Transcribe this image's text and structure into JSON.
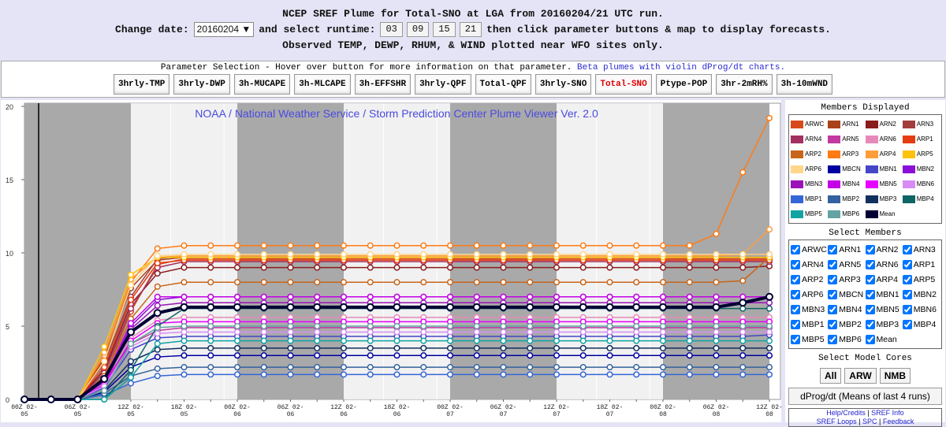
{
  "header": {
    "line1": "NCEP SREF Plume for Total-SNO at LGA from 20160204/21 UTC run.",
    "change_date": "Change date:",
    "date": "20160204",
    "select_runtime": "and select runtime:",
    "runtimes": [
      "03",
      "09",
      "15",
      "21"
    ],
    "line2_tail": "then click parameter buttons & map to display forecasts.",
    "line3": "Observed TEMP, DEWP, RHUM, & WIND plotted near WFO sites only."
  },
  "parameters": {
    "label": "Parameter Selection - Hover over button for more information on that parameter.",
    "beta_link": "Beta plumes with violin dProg/dt charts.",
    "buttons": [
      "3hrly-TMP",
      "3hrly-DWP",
      "3h-MUCAPE",
      "3h-MLCAPE",
      "3h-EFFSHR",
      "3hrly-QPF",
      "Total-QPF",
      "3hrly-SNO",
      "Total-SNO",
      "Ptype-POP",
      "3hr-2mRH%",
      "3h-10mWND"
    ],
    "active": 8
  },
  "chart_data": {
    "type": "line",
    "title": "NOAA / National Weather Service / Storm Prediction Center Plume Viewer Ver. 2.0",
    "categories": [
      "00Z 02-05",
      null,
      "06Z 02-05",
      null,
      "12Z 02-05",
      null,
      "18Z 02-05",
      null,
      "00Z 02-06",
      null,
      "06Z 02-06",
      null,
      "12Z 02-06",
      null,
      "18Z 02-06",
      null,
      "00Z 02-07",
      null,
      "06Z 02-07",
      null,
      "12Z 02-07",
      null,
      "18Z 02-07",
      null,
      "00Z 02-08",
      null,
      "06Z 02-08",
      null,
      "12Z 02-08"
    ],
    "ylim": [
      0,
      20
    ],
    "yticks": [
      0,
      5,
      10,
      15,
      20
    ],
    "series": [
      {
        "name": "ARWC",
        "color": "#d84a1b",
        "values": [
          0,
          0,
          0,
          1.5,
          6,
          9.2,
          9.6,
          9.6,
          9.6,
          9.6,
          9.6,
          9.6,
          9.6,
          9.6,
          9.6,
          9.6,
          9.6,
          9.6,
          9.6,
          9.6,
          9.6,
          9.6,
          9.6,
          9.6,
          9.6,
          9.6,
          9.6,
          9.6,
          9.6
        ]
      },
      {
        "name": "ARN1",
        "color": "#a8421a",
        "values": [
          0,
          0,
          0,
          2.8,
          7.6,
          9.5,
          9.7,
          9.7,
          9.7,
          9.7,
          9.7,
          9.7,
          9.7,
          9.7,
          9.7,
          9.7,
          9.7,
          9.7,
          9.7,
          9.7,
          9.7,
          9.7,
          9.7,
          9.7,
          9.7,
          9.7,
          9.7,
          9.7,
          9.7
        ]
      },
      {
        "name": "ARN2",
        "color": "#8b1c1c",
        "values": [
          0,
          0,
          0,
          2,
          6.5,
          8.6,
          9,
          9,
          9,
          9,
          9,
          9,
          9,
          9,
          9,
          9,
          9,
          9,
          9,
          9,
          9,
          9,
          9,
          9,
          9,
          9,
          9,
          9,
          9.1
        ]
      },
      {
        "name": "ARN3",
        "color": "#a33d3d",
        "values": [
          0,
          0,
          0,
          2.5,
          7,
          9.6,
          9.8,
          9.8,
          9.8,
          9.8,
          9.8,
          9.8,
          9.8,
          9.8,
          9.8,
          9.8,
          9.8,
          9.8,
          9.8,
          9.8,
          9.8,
          9.8,
          9.8,
          9.8,
          9.8,
          9.8,
          9.8,
          9.9,
          9.9
        ]
      },
      {
        "name": "ARN4",
        "color": "#a33060",
        "values": [
          0,
          0,
          0,
          1.8,
          6.2,
          9,
          9.4,
          9.4,
          9.4,
          9.4,
          9.4,
          9.4,
          9.4,
          9.4,
          9.4,
          9.4,
          9.4,
          9.4,
          9.4,
          9.4,
          9.4,
          9.4,
          9.4,
          9.4,
          9.4,
          9.4,
          9.4,
          9.4,
          9.4
        ]
      },
      {
        "name": "ARN5",
        "color": "#c23aa0",
        "values": [
          0,
          0,
          0,
          1.2,
          3.8,
          4.7,
          4.9,
          4.9,
          4.9,
          4.9,
          4.9,
          4.9,
          4.9,
          4.9,
          4.9,
          4.9,
          4.9,
          4.9,
          4.9,
          4.9,
          4.9,
          4.9,
          4.9,
          4.9,
          4.9,
          4.9,
          4.9,
          4.9,
          4.9
        ]
      },
      {
        "name": "ARN6",
        "color": "#e58ab8",
        "values": [
          0,
          0,
          0,
          1.4,
          4.2,
          5.4,
          5.6,
          5.6,
          5.6,
          5.6,
          5.6,
          5.6,
          5.6,
          5.6,
          5.6,
          5.6,
          5.6,
          5.6,
          5.6,
          5.6,
          5.6,
          5.6,
          5.6,
          5.6,
          5.6,
          5.6,
          5.6,
          5.6,
          5.6
        ]
      },
      {
        "name": "ARP1",
        "color": "#e63c12",
        "values": [
          0,
          0,
          0,
          2.2,
          6.8,
          9.3,
          9.5,
          9.5,
          9.5,
          9.5,
          9.5,
          9.5,
          9.5,
          9.5,
          9.5,
          9.5,
          9.5,
          9.5,
          9.5,
          9.5,
          9.5,
          9.5,
          9.5,
          9.5,
          9.5,
          9.5,
          9.5,
          9.5,
          9.5
        ]
      },
      {
        "name": "ARP2",
        "color": "#c8651a",
        "values": [
          0,
          0,
          0,
          1.6,
          5.5,
          7.7,
          8,
          8,
          8,
          8,
          8,
          8,
          8,
          8,
          8,
          8,
          8,
          8,
          8,
          8,
          8,
          8,
          8,
          8,
          8,
          8,
          8,
          8.1,
          9.7
        ]
      },
      {
        "name": "ARP3",
        "color": "#ff7b14",
        "values": [
          0,
          0,
          0,
          3,
          8,
          10.3,
          10.5,
          10.5,
          10.5,
          10.5,
          10.5,
          10.5,
          10.5,
          10.5,
          10.5,
          10.5,
          10.5,
          10.5,
          10.5,
          10.5,
          10.5,
          10.5,
          10.5,
          10.5,
          10.5,
          10.5,
          11.3,
          15.5,
          19.2
        ]
      },
      {
        "name": "ARP4",
        "color": "#ff9d3a",
        "values": [
          0,
          0,
          0,
          3.2,
          8.2,
          9.7,
          9.8,
          9.8,
          9.8,
          9.8,
          9.8,
          9.8,
          9.8,
          9.8,
          9.8,
          9.8,
          9.8,
          9.8,
          9.8,
          9.8,
          9.8,
          9.8,
          9.8,
          9.8,
          9.8,
          9.8,
          9.8,
          9.9,
          11.6
        ]
      },
      {
        "name": "ARP5",
        "color": "#ffc20a",
        "values": [
          0,
          0,
          0,
          3.6,
          8.5,
          9.7,
          9.7,
          9.7,
          9.7,
          9.7,
          9.7,
          9.7,
          9.7,
          9.7,
          9.7,
          9.7,
          9.7,
          9.7,
          9.7,
          9.7,
          9.7,
          9.7,
          9.7,
          9.7,
          9.7,
          9.7,
          9.7,
          9.7,
          9.7
        ]
      },
      {
        "name": "ARP6",
        "color": "#ffd68a",
        "values": [
          0,
          0,
          0,
          2.6,
          7.8,
          9.8,
          9.9,
          9.9,
          9.9,
          9.9,
          9.9,
          9.9,
          9.9,
          9.9,
          9.9,
          9.9,
          9.9,
          9.9,
          9.9,
          9.9,
          9.9,
          9.9,
          9.9,
          9.9,
          9.9,
          9.9,
          9.9,
          9.9,
          9.9
        ]
      },
      {
        "name": "MBCN",
        "color": "#0000a0",
        "values": [
          0,
          0,
          0,
          0.5,
          2.2,
          2.9,
          3,
          3,
          3,
          3,
          3,
          3,
          3,
          3,
          3,
          3,
          3,
          3,
          3,
          3,
          3,
          3,
          3,
          3,
          3,
          3,
          3,
          3,
          3
        ]
      },
      {
        "name": "MBN1",
        "color": "#4545c8",
        "values": [
          0,
          0,
          0,
          0.8,
          3.4,
          4.2,
          4.3,
          4.3,
          4.3,
          4.3,
          4.3,
          4.3,
          4.3,
          4.3,
          4.3,
          4.3,
          4.3,
          4.3,
          4.3,
          4.3,
          4.3,
          4.3,
          4.3,
          4.3,
          4.3,
          4.3,
          4.3,
          4.3,
          4.4
        ]
      },
      {
        "name": "MBN2",
        "color": "#8a10d8",
        "values": [
          0,
          0,
          0,
          1.2,
          5,
          6.8,
          7,
          7,
          7,
          7,
          7,
          7,
          7,
          7,
          7,
          7,
          7,
          7,
          7,
          7,
          7,
          7,
          7,
          7,
          7,
          7,
          7,
          7,
          7
        ]
      },
      {
        "name": "MBN3",
        "color": "#9a12b8",
        "values": [
          0,
          0,
          0,
          1,
          4.8,
          6.4,
          6.6,
          6.6,
          6.6,
          6.6,
          6.6,
          6.6,
          6.6,
          6.6,
          6.6,
          6.6,
          6.6,
          6.6,
          6.6,
          6.6,
          6.6,
          6.6,
          6.6,
          6.6,
          6.6,
          6.6,
          6.6,
          6.6,
          6.6
        ]
      },
      {
        "name": "MBN4",
        "color": "#c400e6",
        "values": [
          0,
          0,
          0,
          1.4,
          5.2,
          7,
          7,
          7,
          7,
          7,
          7,
          7,
          7,
          7,
          7,
          7,
          7,
          7,
          7,
          7,
          7,
          7,
          7,
          7,
          7,
          7,
          7,
          7,
          7
        ]
      },
      {
        "name": "MBN5",
        "color": "#e600ff",
        "values": [
          0,
          0,
          0,
          1,
          4,
          5.2,
          5.3,
          5.3,
          5.3,
          5.3,
          5.3,
          5.3,
          5.3,
          5.3,
          5.3,
          5.3,
          5.3,
          5.3,
          5.3,
          5.3,
          5.3,
          5.3,
          5.3,
          5.3,
          5.3,
          5.3,
          5.3,
          5.3,
          5.3
        ]
      },
      {
        "name": "MBN6",
        "color": "#d78cf5",
        "values": [
          0,
          0,
          0,
          0.9,
          3.6,
          4.5,
          4.6,
          4.6,
          4.6,
          4.6,
          4.6,
          4.6,
          4.6,
          4.6,
          4.6,
          4.6,
          4.6,
          4.6,
          4.6,
          4.6,
          4.6,
          4.6,
          4.6,
          4.6,
          4.6,
          4.6,
          4.6,
          4.6,
          4.6
        ]
      },
      {
        "name": "MBP1",
        "color": "#3566d6",
        "values": [
          0,
          0,
          0,
          0.3,
          1.1,
          1.6,
          1.7,
          1.7,
          1.7,
          1.7,
          1.7,
          1.7,
          1.7,
          1.7,
          1.7,
          1.7,
          1.7,
          1.7,
          1.7,
          1.7,
          1.7,
          1.7,
          1.7,
          1.7,
          1.7,
          1.7,
          1.7,
          1.7,
          1.7
        ]
      },
      {
        "name": "MBP2",
        "color": "#34629e",
        "values": [
          0,
          0,
          0,
          0.4,
          1.6,
          2.1,
          2.2,
          2.2,
          2.2,
          2.2,
          2.2,
          2.2,
          2.2,
          2.2,
          2.2,
          2.2,
          2.2,
          2.2,
          2.2,
          2.2,
          2.2,
          2.2,
          2.2,
          2.2,
          2.2,
          2.2,
          2.2,
          2.2,
          2.2
        ]
      },
      {
        "name": "MBP3",
        "color": "#11305e",
        "values": [
          0,
          0,
          0,
          0.6,
          2.6,
          3.4,
          3.5,
          3.5,
          3.5,
          3.5,
          3.5,
          3.5,
          3.5,
          3.5,
          3.5,
          3.5,
          3.5,
          3.5,
          3.5,
          3.5,
          3.5,
          3.5,
          3.5,
          3.5,
          3.5,
          3.5,
          3.5,
          3.5,
          3.5
        ]
      },
      {
        "name": "MBP4",
        "color": "#0f6464",
        "values": [
          0,
          0,
          0,
          0,
          2,
          5,
          6.2,
          6.2,
          6.2,
          6.2,
          6.2,
          6.2,
          6.2,
          6.2,
          6.2,
          6.2,
          6.2,
          6.2,
          6.2,
          6.2,
          6.2,
          6.2,
          6.2,
          6.2,
          6.2,
          6.2,
          6.2,
          6.2,
          6.2
        ]
      },
      {
        "name": "MBP5",
        "color": "#12a3a3",
        "values": [
          0,
          0,
          0,
          0,
          1.5,
          3.8,
          4,
          4,
          4,
          4,
          4,
          4,
          4,
          4,
          4,
          4,
          4,
          4,
          4,
          4,
          4,
          4,
          4,
          4,
          4,
          4,
          4,
          4,
          4
        ]
      },
      {
        "name": "MBP6",
        "color": "#63a3a3",
        "values": [
          0,
          0,
          0,
          0.6,
          3.8,
          4.9,
          5,
          5,
          5,
          5,
          5,
          5,
          5,
          5,
          5,
          5,
          5,
          5,
          5,
          5,
          5,
          5,
          5,
          5,
          5,
          5,
          5,
          5,
          5
        ]
      },
      {
        "name": "Mean",
        "color": "#000033",
        "width": 4,
        "values": [
          0,
          0,
          0,
          1.4,
          4.6,
          5.9,
          6.3,
          6.3,
          6.3,
          6.3,
          6.3,
          6.3,
          6.3,
          6.3,
          6.3,
          6.3,
          6.3,
          6.3,
          6.3,
          6.3,
          6.3,
          6.3,
          6.3,
          6.3,
          6.3,
          6.3,
          6.3,
          6.6,
          7
        ]
      }
    ]
  },
  "sidebar": {
    "members_displayed": "Members Displayed",
    "select_members": "Select Members",
    "select_cores": "Select Model Cores",
    "core_buttons": [
      "All",
      "ARW",
      "NMB"
    ],
    "dprog_button": "dProg/dt (Means of last 4 runs)",
    "links": [
      "Help/Credits",
      "SREF Info",
      "SREF Loops",
      "SPC",
      "Feedback"
    ]
  }
}
